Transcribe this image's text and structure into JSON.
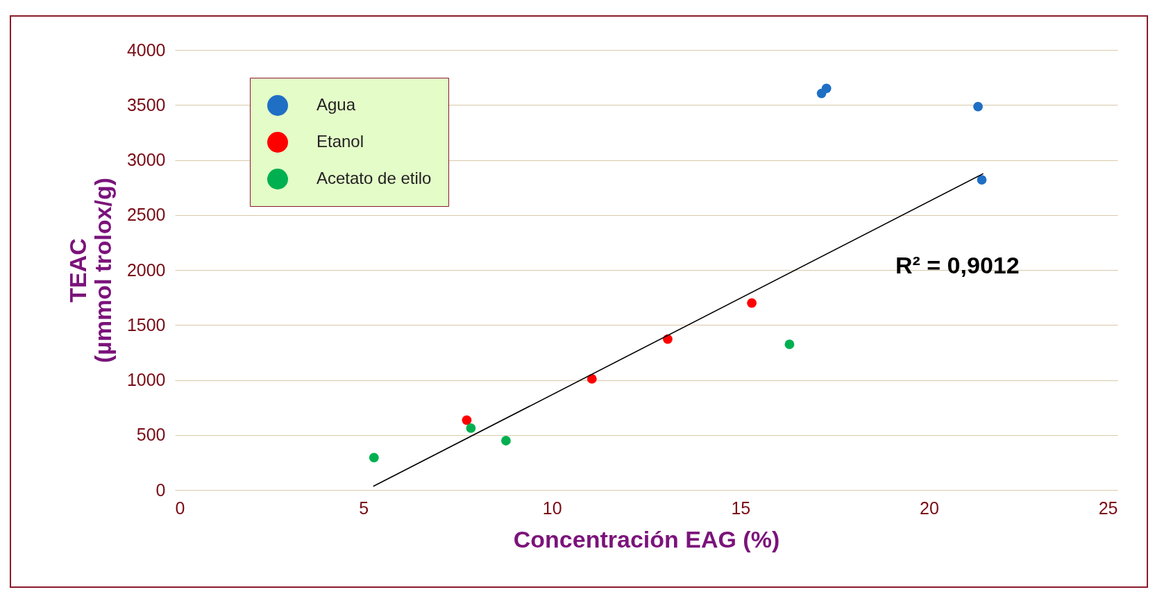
{
  "chart_data": {
    "type": "scatter",
    "xlabel": "Concentración EAG (%)",
    "ylabel": "TEAC\n(µmmol trolox/g)",
    "xlim": [
      0,
      25
    ],
    "xticks": [
      0,
      5,
      10,
      15,
      20,
      25
    ],
    "ylim": [
      0,
      4000
    ],
    "yticks": [
      0,
      500,
      1000,
      1500,
      2000,
      2500,
      3000,
      3500,
      4000
    ],
    "grid": "y",
    "legend": "top left",
    "marker": "circle",
    "series": [
      {
        "name": "Agua",
        "color": "#1f6fc5",
        "x": [
          17.15,
          17.28,
          21.3,
          21.4
        ],
        "values": [
          3605,
          3650,
          3485,
          2820
        ]
      },
      {
        "name": "Etanol",
        "color": "#ff0000",
        "x": [
          7.74,
          11.06,
          13.07,
          15.3
        ],
        "values": [
          635,
          1010,
          1371,
          1699
        ]
      },
      {
        "name": "Acetato de etilo",
        "color": "#00b050",
        "x": [
          5.28,
          7.85,
          8.78,
          16.3
        ],
        "values": [
          294,
          562,
          448,
          1324
        ]
      },
      {
        "type": "line",
        "marker": "none",
        "color": "#000000",
        "x": [
          5.26,
          21.44
        ],
        "values": [
          33,
          2876
        ]
      }
    ],
    "annotations": [
      "R² = 0,9012"
    ]
  }
}
